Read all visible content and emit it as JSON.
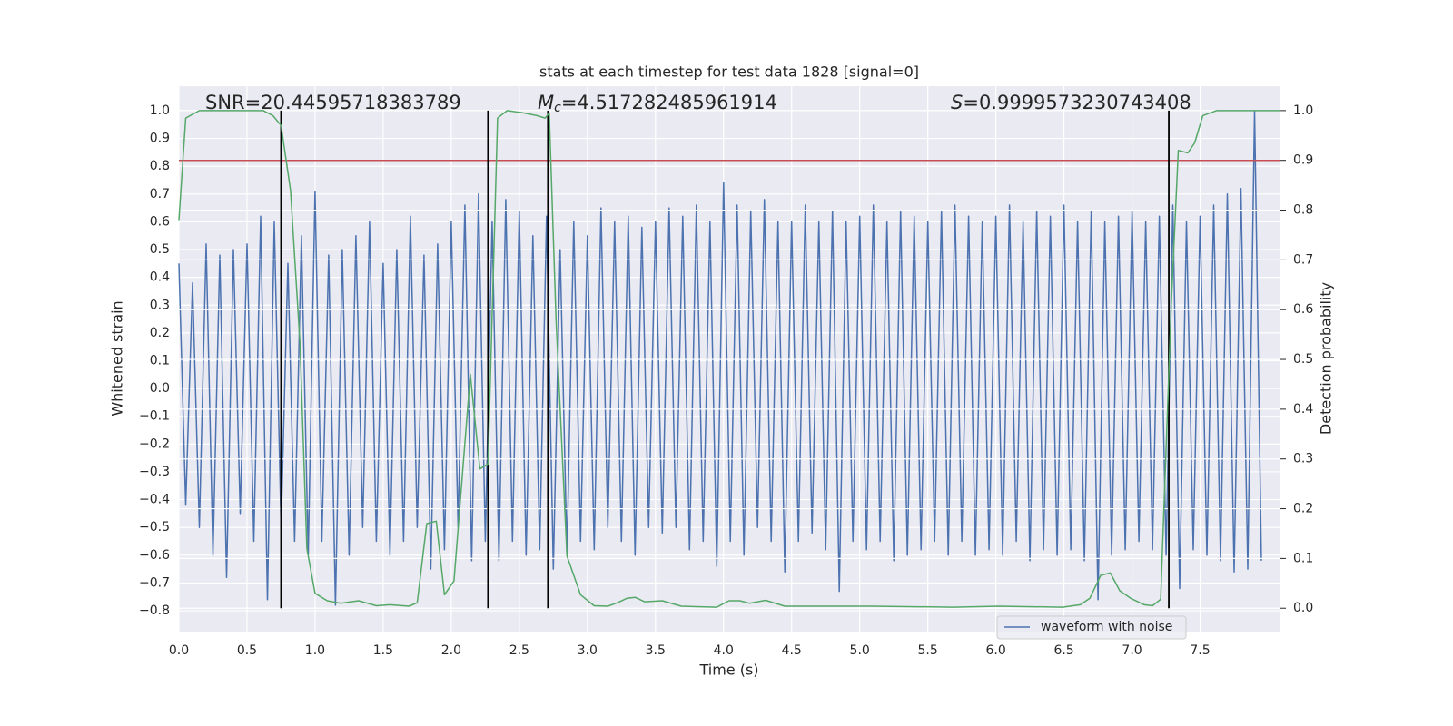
{
  "chart_data": {
    "type": "line",
    "title": "stats at each timestep for test data 1828 [signal=0]",
    "xlabel": "Time (s)",
    "ylabel": "Whitened strain",
    "y2label": "Detection probability",
    "annotations": [
      {
        "text": "SNR=20.44595718383789"
      },
      {
        "italic": "M",
        "sub": "c",
        "text": "=4.517282485961914"
      },
      {
        "italic": "S",
        "text": "=0.9999573230743408"
      }
    ],
    "xlim": [
      0,
      8.09
    ],
    "ylim": [
      -0.875,
      1.088
    ],
    "y2lim": [
      -0.047,
      1.049
    ],
    "xticks": [
      {
        "value": 0,
        "label": "0.0"
      },
      0.5,
      {
        "value": 1,
        "label": "1.0"
      },
      1.5,
      {
        "value": 2,
        "label": "2.0"
      },
      2.5,
      {
        "value": 3,
        "label": "3.0"
      },
      3.5,
      {
        "value": 4,
        "label": "4.0"
      },
      4.5,
      {
        "value": 5,
        "label": "5.0"
      },
      5.5,
      {
        "value": 6,
        "label": "6.0"
      },
      6.5,
      {
        "value": 7,
        "label": "7.0"
      },
      7.5
    ],
    "yticks": [
      {
        "value": 1,
        "label": "1.0"
      },
      0.9,
      0.8,
      0.7,
      0.6,
      0.5,
      0.4,
      0.3,
      0.2,
      0.1,
      {
        "value": 0,
        "label": "0.0"
      },
      {
        "value": -0.1,
        "label": "−0.1"
      },
      {
        "value": -0.2,
        "label": "−0.2"
      },
      {
        "value": -0.3,
        "label": "−0.3"
      },
      {
        "value": -0.4,
        "label": "−0.4"
      },
      {
        "value": -0.5,
        "label": "−0.5"
      },
      {
        "value": -0.6,
        "label": "−0.6"
      },
      {
        "value": -0.7,
        "label": "−0.7"
      },
      {
        "value": -0.8,
        "label": "−0.8"
      }
    ],
    "y2ticks": [
      {
        "value": 0,
        "label": "0.0"
      },
      0.1,
      0.2,
      0.3,
      0.4,
      0.5,
      0.6,
      0.7,
      0.8,
      0.9,
      {
        "value": 1,
        "label": "1.0"
      }
    ],
    "grid": true,
    "y2grid": true,
    "legend": "lower right",
    "threshold": 0.9,
    "threshold_color": "#c44e52",
    "vlines": [
      0.75,
      2.27,
      2.71,
      7.27
    ],
    "vline_color": "#000000",
    "series": [
      {
        "name": "waveform with noise",
        "color": "#4c72b0",
        "axis": "y",
        "x": [
          0,
          0.05,
          0.1,
          0.15,
          0.2,
          0.25,
          0.3,
          0.35,
          0.4,
          0.45,
          0.5,
          0.55,
          0.6,
          0.65,
          0.7,
          0.75,
          0.8,
          0.85,
          0.9,
          0.95,
          1,
          1.05,
          1.1,
          1.15,
          1.2,
          1.25,
          1.3,
          1.35,
          1.4,
          1.45,
          1.5,
          1.55,
          1.6,
          1.65,
          1.7,
          1.75,
          1.8,
          1.85,
          1.9,
          1.95,
          2,
          2.05,
          2.1,
          2.15,
          2.2,
          2.25,
          2.3,
          2.35,
          2.4,
          2.45,
          2.5,
          2.55,
          2.6,
          2.65,
          2.7,
          2.75,
          2.8,
          2.85,
          2.9,
          2.95,
          3,
          3.05,
          3.1,
          3.15,
          3.2,
          3.25,
          3.3,
          3.35,
          3.4,
          3.45,
          3.5,
          3.55,
          3.6,
          3.65,
          3.7,
          3.75,
          3.8,
          3.85,
          3.9,
          3.95,
          4,
          4.05,
          4.1,
          4.15,
          4.2,
          4.25,
          4.3,
          4.35,
          4.4,
          4.45,
          4.5,
          4.55,
          4.6,
          4.65,
          4.7,
          4.75,
          4.8,
          4.85,
          4.9,
          4.95,
          5,
          5.05,
          5.1,
          5.15,
          5.2,
          5.25,
          5.3,
          5.35,
          5.4,
          5.45,
          5.5,
          5.55,
          5.6,
          5.65,
          5.7,
          5.75,
          5.8,
          5.85,
          5.9,
          5.95,
          6,
          6.05,
          6.1,
          6.15,
          6.2,
          6.25,
          6.3,
          6.35,
          6.4,
          6.45,
          6.5,
          6.55,
          6.6,
          6.65,
          6.7,
          6.75,
          6.8,
          6.85,
          6.9,
          6.95,
          7,
          7.05,
          7.1,
          7.15,
          7.2,
          7.25,
          7.3,
          7.35,
          7.4,
          7.45,
          7.5,
          7.55,
          7.6,
          7.65,
          7.7,
          7.75,
          7.8,
          7.85,
          7.9,
          7.95
        ],
        "values": [
          0.45,
          -0.42,
          0.38,
          -0.5,
          0.52,
          -0.6,
          0.48,
          -0.68,
          0.5,
          -0.45,
          0.52,
          -0.55,
          0.62,
          -0.76,
          0.6,
          -0.5,
          0.45,
          -0.55,
          0.55,
          -0.6,
          0.71,
          -0.55,
          0.48,
          -0.78,
          0.5,
          -0.6,
          0.55,
          -0.5,
          0.6,
          -0.55,
          0.45,
          -0.6,
          0.5,
          -0.55,
          0.62,
          -0.5,
          0.48,
          -0.65,
          0.52,
          -0.58,
          0.6,
          -0.5,
          0.66,
          -0.62,
          0.7,
          -0.55,
          0.6,
          -0.62,
          0.68,
          -0.55,
          0.64,
          -0.6,
          0.55,
          -0.58,
          0.62,
          -0.65,
          0.5,
          -0.6,
          0.6,
          -0.55,
          0.55,
          -0.58,
          0.65,
          -0.5,
          0.6,
          -0.55,
          0.62,
          -0.6,
          0.58,
          -0.5,
          0.6,
          -0.52,
          0.65,
          -0.5,
          0.62,
          -0.58,
          0.66,
          -0.55,
          0.6,
          -0.64,
          0.74,
          -0.55,
          0.66,
          -0.6,
          0.64,
          -0.5,
          0.68,
          -0.55,
          0.6,
          -0.66,
          0.6,
          -0.55,
          0.66,
          -0.52,
          0.6,
          -0.58,
          0.64,
          -0.73,
          0.6,
          -0.55,
          0.62,
          -0.58,
          0.66,
          -0.55,
          0.6,
          -0.62,
          0.64,
          -0.6,
          0.62,
          -0.58,
          0.6,
          -0.55,
          0.64,
          -0.6,
          0.66,
          -0.55,
          0.62,
          -0.6,
          0.6,
          -0.58,
          0.62,
          -0.6,
          0.66,
          -0.55,
          0.6,
          -0.62,
          0.64,
          -0.58,
          0.62,
          -0.6,
          0.66,
          -0.58,
          0.6,
          -0.62,
          0.64,
          -0.76,
          0.6,
          -0.6,
          0.62,
          -0.58,
          0.64,
          -0.55,
          0.6,
          -0.58,
          0.62,
          -0.6,
          0.66,
          -0.72,
          0.6,
          -0.58,
          0.62,
          -0.6,
          0.66,
          -0.62,
          0.7,
          -0.66,
          0.72,
          -0.65,
          1.0,
          -0.62
        ]
      },
      {
        "color": "#55a868",
        "axis": "y2",
        "x": [
          0,
          0.05,
          0.15,
          0.62,
          0.69,
          0.75,
          0.82,
          0.89,
          0.94,
          1,
          1.09,
          1.19,
          1.32,
          1.45,
          1.55,
          1.69,
          1.75,
          1.82,
          1.89,
          1.95,
          2.02,
          2.14,
          2.21,
          2.27,
          2.34,
          2.41,
          2.52,
          2.63,
          2.69,
          2.72,
          2.77,
          2.85,
          2.95,
          3.05,
          3.15,
          3.22,
          3.29,
          3.35,
          3.42,
          3.55,
          3.69,
          3.95,
          4.04,
          4.12,
          4.19,
          4.31,
          4.45,
          5.09,
          5.69,
          6.02,
          6.49,
          6.62,
          6.69,
          6.77,
          6.84,
          6.91,
          6.99,
          7.09,
          7.15,
          7.21,
          7.29,
          7.34,
          7.41,
          7.46,
          7.52,
          7.62,
          8.09
        ],
        "values": [
          0.78,
          0.985,
          1,
          1,
          0.99,
          0.97,
          0.84,
          0.53,
          0.12,
          0.03,
          0.015,
          0.01,
          0.015,
          0.005,
          0.007,
          0.004,
          0.011,
          0.17,
          0.175,
          0.027,
          0.055,
          0.47,
          0.28,
          0.29,
          0.985,
          1,
          0.996,
          0.99,
          0.985,
          0.995,
          0.58,
          0.105,
          0.027,
          0.005,
          0.004,
          0.011,
          0.02,
          0.022,
          0.013,
          0.015,
          0.004,
          0.002,
          0.015,
          0.015,
          0.01,
          0.016,
          0.004,
          0.004,
          0.002,
          0.004,
          0.002,
          0.007,
          0.02,
          0.066,
          0.071,
          0.035,
          0.02,
          0.007,
          0.005,
          0.018,
          0.62,
          0.92,
          0.915,
          0.935,
          0.99,
          1,
          1
        ]
      }
    ]
  }
}
